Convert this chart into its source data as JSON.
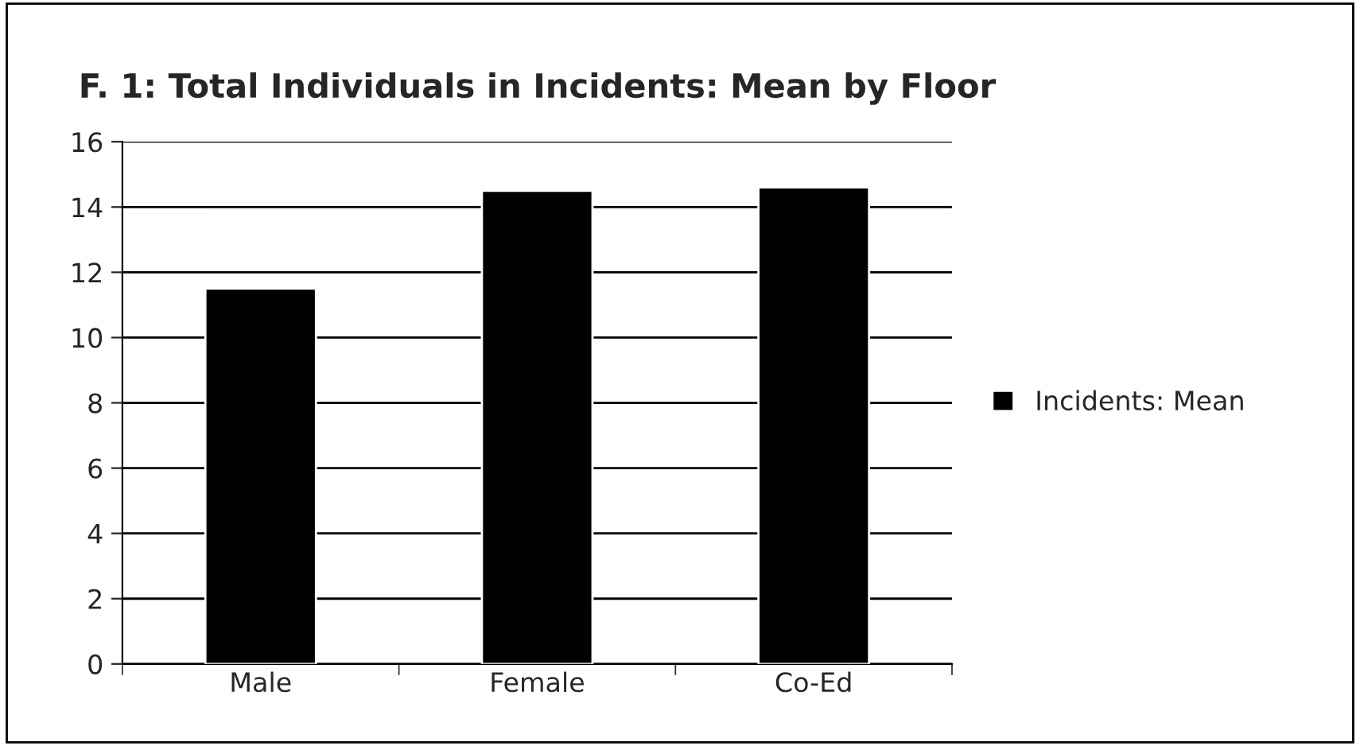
{
  "chart_data": {
    "type": "bar",
    "title": "F. 1: Total Individuals in Incidents: Mean by Floor",
    "categories": [
      "Male",
      "Female",
      "Co-Ed"
    ],
    "series": [
      {
        "name": "Incidents: Mean",
        "color": "#000000",
        "values": [
          11.5,
          14.5,
          14.6
        ]
      }
    ],
    "ylim": [
      0,
      16
    ],
    "yticks": [
      0,
      2,
      4,
      6,
      8,
      10,
      12,
      14,
      16
    ],
    "grid": "y",
    "legend": "right"
  }
}
